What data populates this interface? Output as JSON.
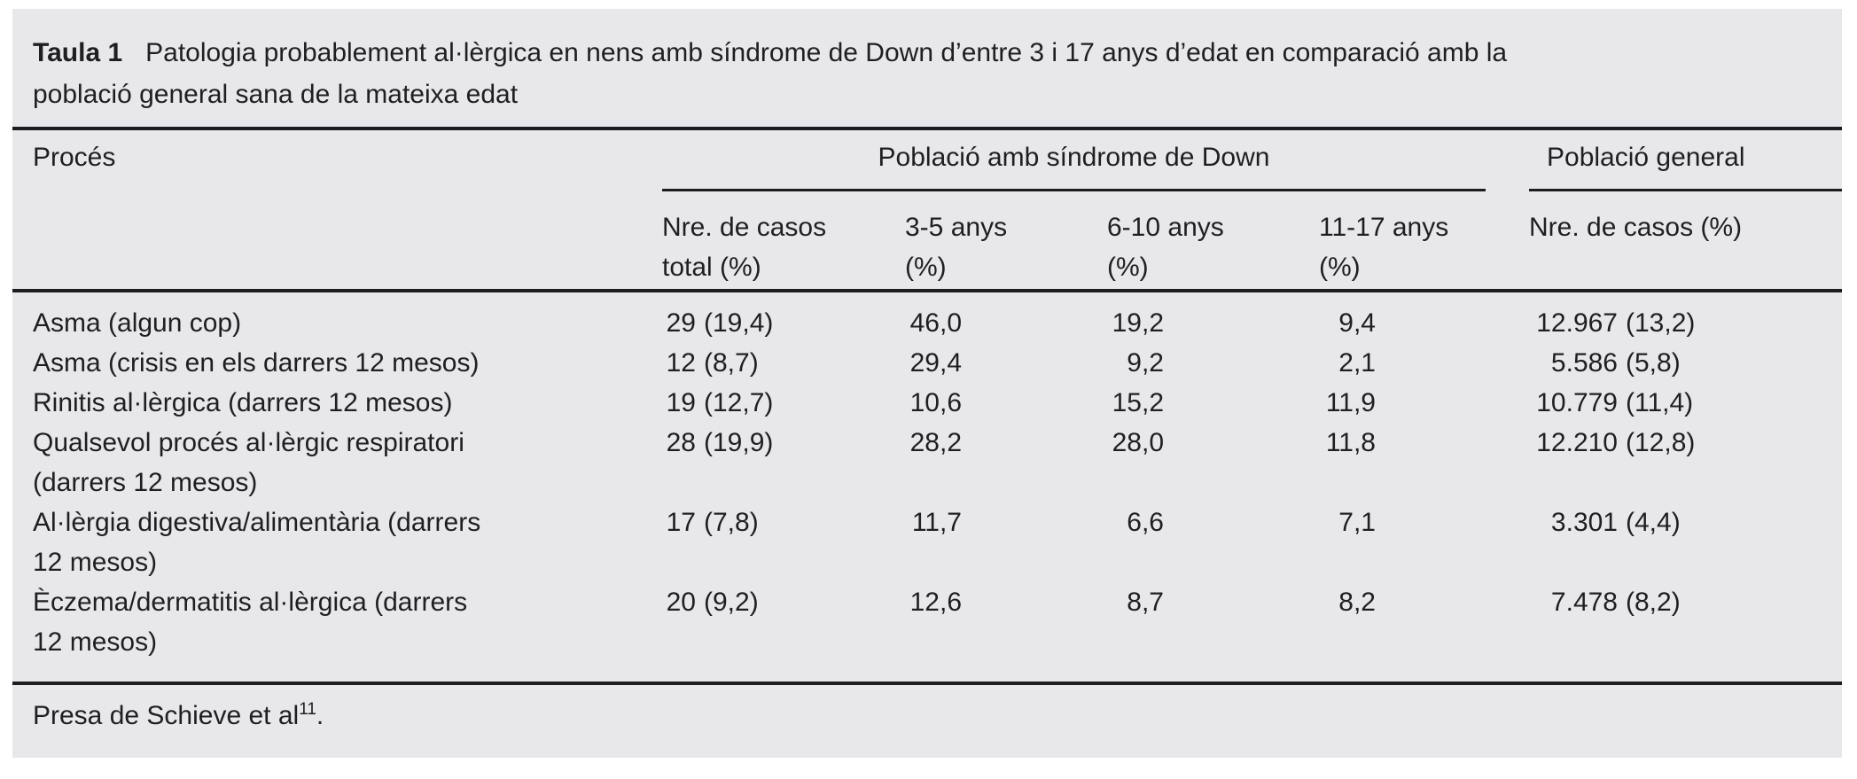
{
  "title": {
    "label": "Taula 1",
    "text": "Patologia probablement al·lèrgica en nens amb síndrome de Down d’entre 3 i 17 anys d’edat en comparació amb la\npoblació general sana de la mateixa edat"
  },
  "header": {
    "proces": "Procés",
    "group_down": "Població amb síndrome de Down",
    "group_general": "Població general",
    "sub_total": "Nre. de casos\ntotal (%)",
    "sub_anys35": "3-5 anys\n(%)",
    "sub_anys610": "6-10 anys\n(%)",
    "sub_anys1117": "11-17 anys\n(%)",
    "sub_general": "Nre. de casos (%)"
  },
  "rows": [
    {
      "proces": "Asma (algun cop)",
      "total_n": "29",
      "total_p": "(19,4)",
      "anys35": "46,0",
      "anys610": "19,2",
      "anys1117": "9,4",
      "general_n": "12.967",
      "general_p": "(13,2)"
    },
    {
      "proces": "Asma (crisis en els darrers 12 mesos)",
      "total_n": "12",
      "total_p": "(8,7)",
      "anys35": "29,4",
      "anys610": "9,2",
      "anys1117": "2,1",
      "general_n": "5.586",
      "general_p": "(5,8)"
    },
    {
      "proces": "Rinitis al·lèrgica (darrers 12 mesos)",
      "total_n": "19",
      "total_p": "(12,7)",
      "anys35": "10,6",
      "anys610": "15,2",
      "anys1117": "11,9",
      "general_n": "10.779",
      "general_p": "(11,4)"
    },
    {
      "proces": "Qualsevol procés al·lèrgic respiratori\n(darrers 12 mesos)",
      "total_n": "28",
      "total_p": "(19,9)",
      "anys35": "28,2",
      "anys610": "28,0",
      "anys1117": "11,8",
      "general_n": "12.210",
      "general_p": "(12,8)"
    },
    {
      "proces": "Al·lèrgia digestiva/alimentària (darrers\n12 mesos)",
      "total_n": "17",
      "total_p": "(7,8)",
      "anys35": "11,7",
      "anys610": "6,6",
      "anys1117": "7,1",
      "general_n": "3.301",
      "general_p": "(4,4)"
    },
    {
      "proces": "Èczema/dermatitis al·lèrgica (darrers\n12 mesos)",
      "total_n": "20",
      "total_p": "(9,2)",
      "anys35": "12,6",
      "anys610": "8,7",
      "anys1117": "8,2",
      "general_n": "7.478",
      "general_p": "(8,2)"
    }
  ],
  "footer": {
    "text": "Presa de Schieve et al",
    "sup": "11",
    "period": "."
  },
  "colors": {
    "background": "#e8e8ea",
    "text": "#1f1f23",
    "rule": "#1d1d21"
  }
}
